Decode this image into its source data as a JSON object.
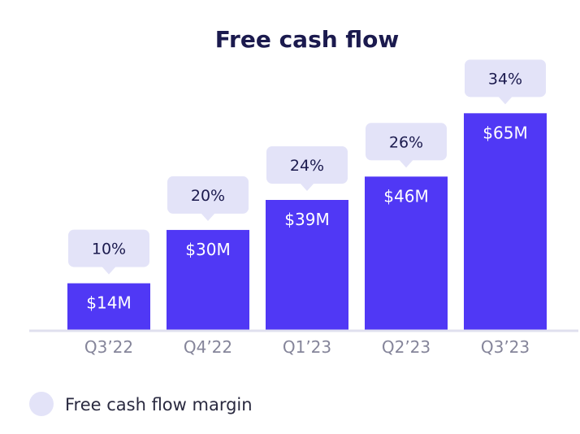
{
  "chart_data": {
    "type": "bar",
    "title": "Free cash flow",
    "categories": [
      "Q3’22",
      "Q4’22",
      "Q1’23",
      "Q2’23",
      "Q3’23"
    ],
    "series": [
      {
        "values": [
          14,
          30,
          39,
          46,
          65
        ],
        "value_labels": [
          "$14M",
          "$30M",
          "$39M",
          "$46M",
          "$65M"
        ]
      },
      {
        "name": "Free cash flow margin",
        "values": [
          10,
          20,
          24,
          26,
          34
        ],
        "value_labels": [
          "10%",
          "20%",
          "24%",
          "26%",
          "34%"
        ]
      }
    ],
    "ylim": [
      0,
      78
    ],
    "grid": false,
    "legend_position": "bottom-left"
  },
  "colors": {
    "bar": "#5038f5",
    "callout": "#e3e3f8",
    "baseline": "#e0e0ee",
    "title": "#1b1a4e"
  }
}
